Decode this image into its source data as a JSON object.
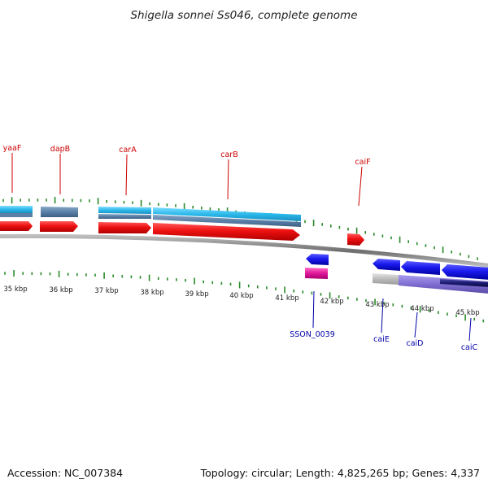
{
  "header": {
    "title": "Shigella sonnei Ss046, complete genome"
  },
  "footer": {
    "accession": "Accession: NC_007384",
    "summary": "Topology: circular; Length: 4,825,265 bp; Genes: 4,337"
  },
  "colors": {
    "label_top": "#cc0000",
    "label_bottom": "#0000aa",
    "tick": "#2a8a2a",
    "backbone": "#8a8a8a",
    "cds_red": "#ee1111",
    "cds_blue": "#1a1aee",
    "gene_lightblue": "#33c0ee",
    "gene_steel": "#5a80a8",
    "misc_magenta": "#e0199a",
    "misc_gray": "#b8b8b8",
    "misc_purple": "#8070d0",
    "misc_navy": "#1a1a70"
  },
  "scale": {
    "unit": "kbp",
    "labels": [
      "35 kbp",
      "36 kbp",
      "37 kbp",
      "38 kbp",
      "39 kbp",
      "40 kbp",
      "41 kbp",
      "42 kbp",
      "43 kbp",
      "44 kbp",
      "45 kbp"
    ]
  },
  "genes_top": [
    {
      "name": "yaaF"
    },
    {
      "name": "dapB"
    },
    {
      "name": "carA"
    },
    {
      "name": "carB"
    },
    {
      "name": "caiF"
    }
  ],
  "genes_bottom": [
    {
      "name": "SSON_0039"
    },
    {
      "name": "caiE"
    },
    {
      "name": "caiD"
    },
    {
      "name": "caiC"
    }
  ]
}
